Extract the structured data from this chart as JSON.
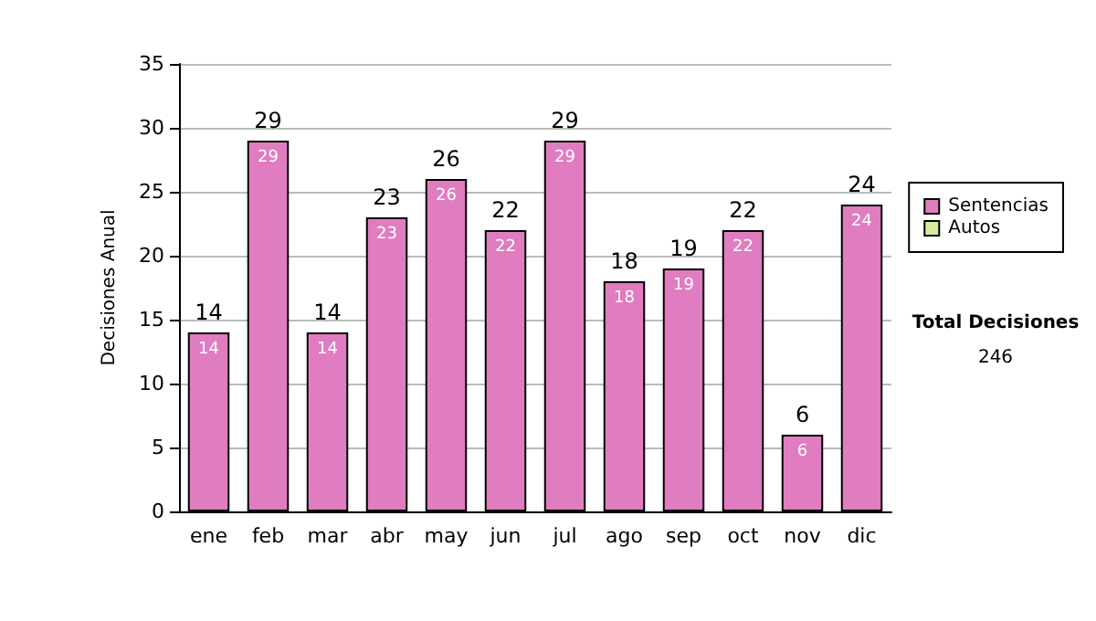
{
  "chart_data": {
    "type": "bar",
    "ylabel": "Decisiones Anual",
    "categories": [
      "ene",
      "feb",
      "mar",
      "abr",
      "may",
      "jun",
      "jul",
      "ago",
      "sep",
      "oct",
      "nov",
      "dic"
    ],
    "series": [
      {
        "name": "Sentencias",
        "color": "#e07cc0",
        "values": [
          14,
          29,
          14,
          23,
          26,
          22,
          29,
          18,
          19,
          22,
          6,
          24
        ],
        "value_labels": [
          "14",
          "29",
          "14",
          "23",
          "26",
          "22",
          "29",
          "18",
          "19",
          "22",
          "6",
          "24"
        ]
      },
      {
        "name": "Autos",
        "color": "#d8eca0",
        "values": [
          0,
          0,
          0,
          0,
          0,
          0,
          0,
          0,
          0,
          0,
          0,
          0
        ]
      }
    ],
    "stacked": true,
    "totals": [
      "14",
      "29",
      "14",
      "23",
      "26",
      "22",
      "29",
      "18",
      "19",
      "22",
      "6",
      "24"
    ],
    "ylim": [
      0,
      35
    ],
    "yticks": [
      0,
      5,
      10,
      15,
      20,
      25,
      30,
      35
    ],
    "grid": "y",
    "legend": "right",
    "annotations": [
      "Total Decisiones",
      "246"
    ]
  }
}
